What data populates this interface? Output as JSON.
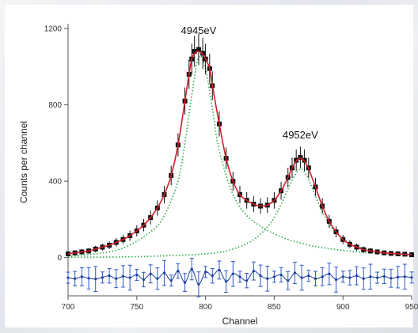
{
  "chart_data": {
    "type": "scatter",
    "xlabel": "Channel",
    "ylabel": "Counts per channel",
    "xlim": [
      700,
      950
    ],
    "ylim": [
      -200,
      1200
    ],
    "x_ticks": [
      700,
      750,
      800,
      850,
      900,
      950
    ],
    "y_ticks": [
      0,
      400,
      800,
      1200
    ],
    "grid": false,
    "annotations": [
      {
        "text": "4945eV",
        "x": 795,
        "y": 1170
      },
      {
        "text": "4952eV",
        "x": 869,
        "y": 625
      }
    ],
    "series": [
      {
        "role": "data-points",
        "style": "black squares with error bars",
        "x": [
          700,
          705,
          710,
          715,
          720,
          725,
          730,
          735,
          740,
          745,
          750,
          755,
          760,
          765,
          770,
          775,
          780,
          785,
          788,
          790,
          792,
          795,
          798,
          800,
          803,
          805,
          810,
          815,
          820,
          825,
          830,
          835,
          840,
          845,
          850,
          855,
          860,
          863,
          866,
          869,
          872,
          875,
          880,
          885,
          890,
          895,
          900,
          905,
          910,
          915,
          920,
          925,
          930,
          935,
          940,
          945,
          950
        ],
        "y": [
          20,
          25,
          30,
          35,
          45,
          55,
          65,
          80,
          95,
          115,
          140,
          170,
          210,
          260,
          330,
          430,
          590,
          820,
          960,
          1040,
          1080,
          1090,
          1070,
          1040,
          990,
          900,
          700,
          520,
          400,
          330,
          300,
          280,
          270,
          275,
          300,
          350,
          420,
          470,
          510,
          525,
          510,
          470,
          370,
          270,
          190,
          135,
          95,
          70,
          55,
          42,
          35,
          30,
          25,
          22,
          20,
          18,
          15
        ]
      },
      {
        "role": "fit",
        "style": "red line",
        "x": [
          700,
          705,
          710,
          715,
          720,
          725,
          730,
          735,
          740,
          745,
          750,
          755,
          760,
          765,
          770,
          775,
          780,
          785,
          788,
          790,
          792,
          795,
          798,
          800,
          803,
          805,
          810,
          815,
          820,
          825,
          830,
          835,
          840,
          845,
          850,
          855,
          860,
          863,
          866,
          869,
          872,
          875,
          880,
          885,
          890,
          895,
          900,
          905,
          910,
          915,
          920,
          925,
          930,
          935,
          940,
          945,
          950
        ],
        "y": [
          20,
          25,
          30,
          35,
          45,
          55,
          65,
          80,
          95,
          115,
          140,
          170,
          210,
          260,
          330,
          430,
          590,
          820,
          960,
          1040,
          1070,
          1080,
          1065,
          1040,
          990,
          900,
          700,
          520,
          400,
          330,
          300,
          280,
          270,
          275,
          300,
          350,
          420,
          470,
          505,
          520,
          505,
          465,
          370,
          270,
          190,
          135,
          95,
          70,
          55,
          42,
          35,
          30,
          25,
          22,
          20,
          18,
          15
        ]
      },
      {
        "role": "component-1",
        "style": "green dotted",
        "x": [
          700,
          720,
          740,
          760,
          770,
          780,
          785,
          790,
          795,
          800,
          805,
          810,
          820,
          830,
          840,
          850,
          860,
          870,
          880,
          900,
          920,
          950
        ],
        "y": [
          8,
          20,
          50,
          135,
          220,
          400,
          600,
          850,
          1050,
          990,
          780,
          560,
          330,
          220,
          165,
          125,
          95,
          75,
          58,
          38,
          25,
          15
        ]
      },
      {
        "role": "component-2",
        "style": "green dotted",
        "x": [
          700,
          750,
          800,
          820,
          835,
          845,
          850,
          855,
          860,
          865,
          869,
          873,
          878,
          885,
          895,
          910,
          930,
          950
        ],
        "y": [
          2,
          5,
          20,
          45,
          95,
          160,
          210,
          280,
          360,
          430,
          465,
          440,
          360,
          240,
          130,
          60,
          25,
          10
        ]
      },
      {
        "role": "residuals",
        "style": "blue error bars",
        "x": [
          700,
          705,
          710,
          715,
          720,
          725,
          730,
          735,
          740,
          745,
          750,
          755,
          760,
          765,
          770,
          775,
          780,
          785,
          790,
          795,
          800,
          805,
          810,
          815,
          820,
          825,
          830,
          835,
          840,
          845,
          850,
          855,
          860,
          865,
          870,
          875,
          880,
          885,
          890,
          895,
          900,
          905,
          910,
          915,
          920,
          925,
          930,
          935,
          940,
          945,
          950
        ],
        "y": [
          -105,
          -110,
          -100,
          -108,
          -112,
          -104,
          -95,
          -110,
          -98,
          -105,
          -90,
          -115,
          -85,
          -110,
          -80,
          -120,
          -70,
          -130,
          -60,
          -140,
          -75,
          -95,
          -65,
          -125,
          -85,
          -100,
          -120,
          -70,
          -95,
          -110,
          -100,
          -90,
          -120,
          -80,
          -105,
          -95,
          -110,
          -100,
          -85,
          -115,
          -100,
          -105,
          -95,
          -110,
          -100,
          -105,
          -98,
          -108,
          -102,
          -100,
          -104
        ]
      }
    ]
  }
}
